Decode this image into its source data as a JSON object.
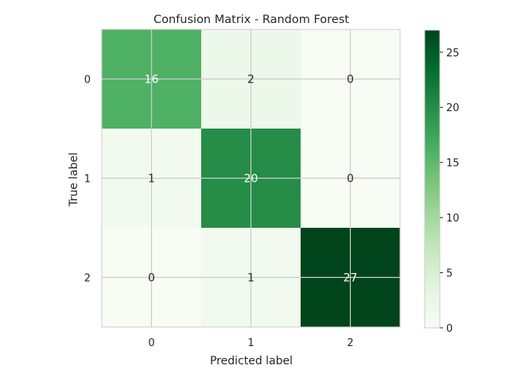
{
  "chart_data": {
    "type": "heatmap",
    "title": "Confusion Matrix - Random Forest",
    "xlabel": "Predicted label",
    "ylabel": "True label",
    "x_categories": [
      "0",
      "1",
      "2"
    ],
    "y_categories": [
      "0",
      "1",
      "2"
    ],
    "values": [
      [
        16,
        2,
        0
      ],
      [
        1,
        20,
        0
      ],
      [
        0,
        1,
        27
      ]
    ],
    "colormap": "Greens",
    "value_range": [
      0,
      27
    ],
    "colorbar_ticks": [
      0,
      5,
      10,
      15,
      20,
      25
    ],
    "colorbar_tick_labels": [
      "0",
      "5",
      "10",
      "15",
      "20",
      "25"
    ],
    "grid": true
  }
}
